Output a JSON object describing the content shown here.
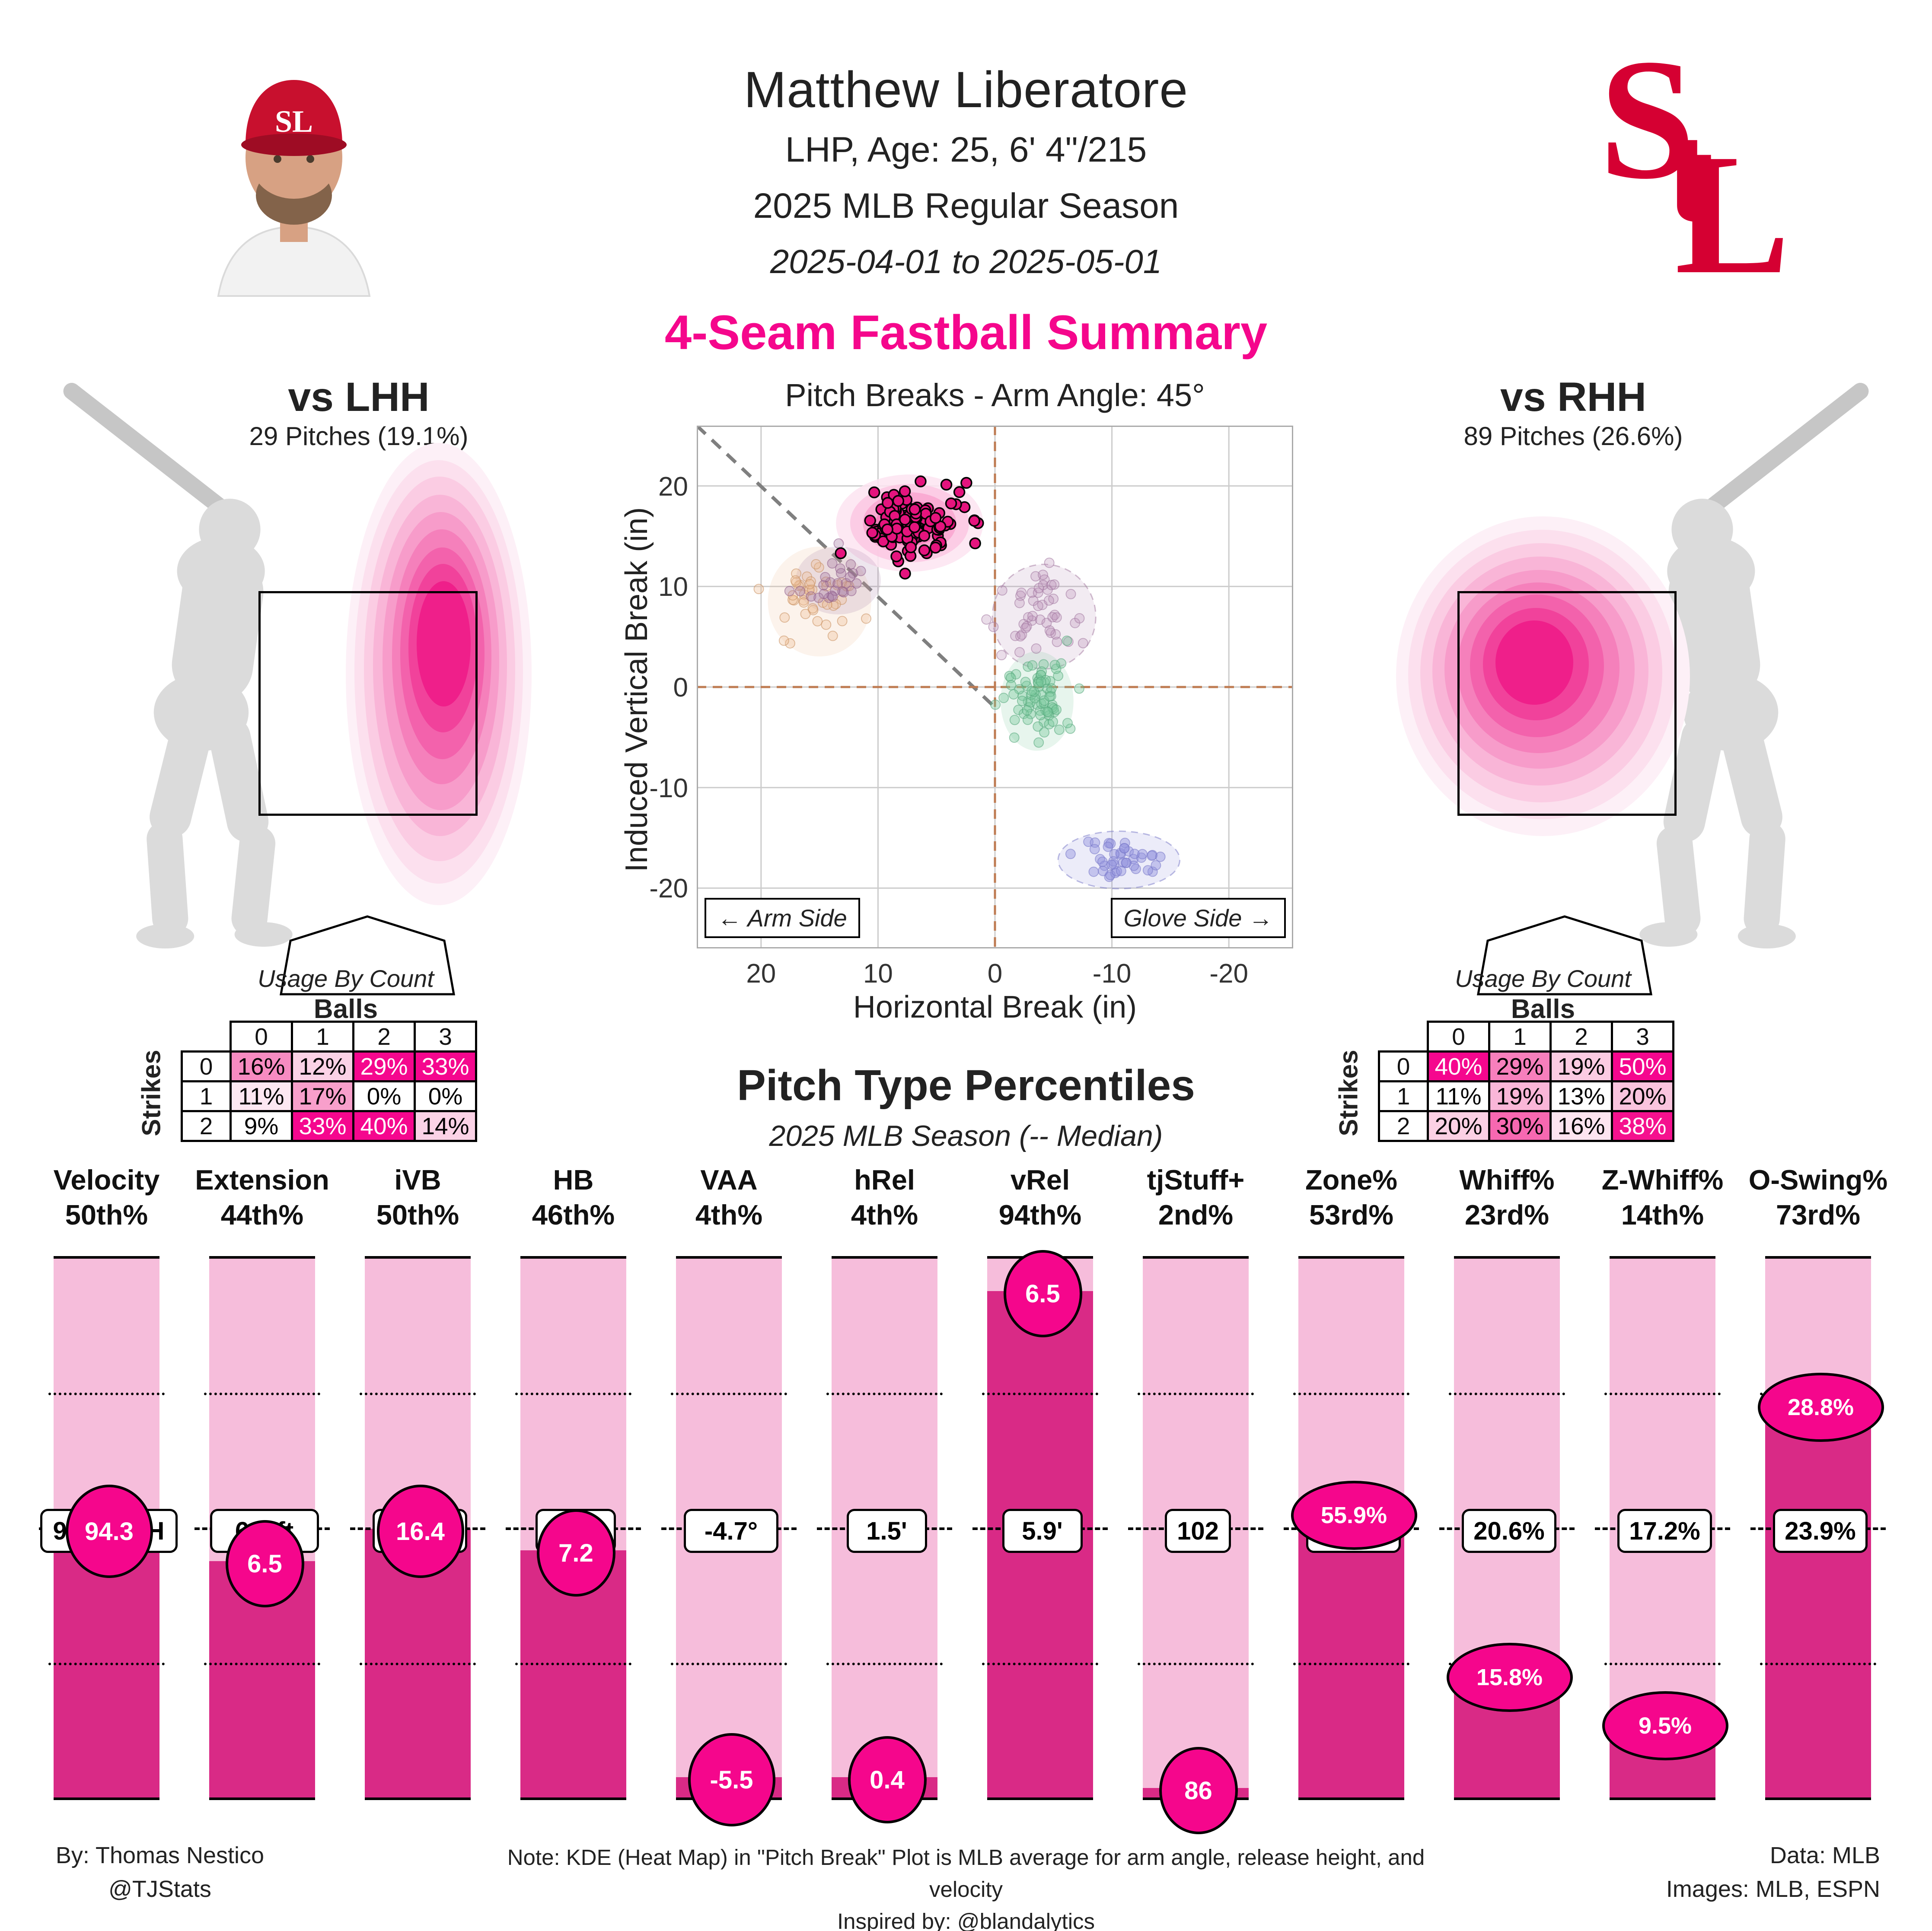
{
  "colors": {
    "accent": "#F5068C",
    "bar_dark": "#D92A86",
    "bar_light": "#F6BDDB",
    "circle_fill": "#F5068C",
    "logo_red": "#D50032",
    "silhouette": "#DBDBDB",
    "brown_dash": "#BE7B52",
    "gray_dash": "#7F7F7F",
    "grid": "#CCCCCC",
    "plot_border": "#AAAAAA"
  },
  "header": {
    "name": "Matthew Liberatore",
    "bio": "LHP, Age: 25, 6' 4\"/215",
    "season": "2025 MLB Regular Season",
    "date_range": "2025-04-01 to 2025-05-01",
    "team_monogram": "StL"
  },
  "section_title": "4-Seam Fastball Summary",
  "panels": {
    "lhh": {
      "title": "vs LHH",
      "subtitle": "29 Pitches (19.1%)",
      "heat_layers": [
        [
          417,
          192,
          430,
          1070,
          "#FDF0F7"
        ],
        [
          417,
          187,
          390,
          980,
          "#FCE0EE"
        ],
        [
          419,
          180,
          350,
          890,
          "#FBCCE3"
        ],
        [
          420,
          172,
          310,
          790,
          "#F9B5D7"
        ],
        [
          422,
          162,
          270,
          690,
          "#F79CCA"
        ],
        [
          424,
          152,
          230,
          590,
          "#F580BB"
        ],
        [
          425,
          144,
          195,
          490,
          "#F362AC"
        ],
        [
          427,
          132,
          160,
          390,
          "#F1429B"
        ],
        [
          428,
          122,
          125,
          290,
          "#EF1F8A"
        ]
      ]
    },
    "rhh": {
      "title": "vs RHH",
      "subtitle": "89 Pitches (26.6%)",
      "heat_layers": [
        [
          198,
          197,
          680,
          740,
          "#FDF0F7"
        ],
        [
          196,
          193,
          620,
          670,
          "#FCE0EE"
        ],
        [
          194,
          189,
          560,
          600,
          "#FBCCE3"
        ],
        [
          192,
          185,
          500,
          530,
          "#F9B5D7"
        ],
        [
          190,
          181,
          440,
          460,
          "#F79CCA"
        ],
        [
          187,
          177,
          375,
          395,
          "#F580BB"
        ],
        [
          184,
          173,
          310,
          330,
          "#F362AC"
        ],
        [
          181,
          169,
          245,
          260,
          "#F1429B"
        ],
        [
          178,
          165,
          180,
          195,
          "#EF1F8A"
        ]
      ]
    }
  },
  "usage": {
    "title": "Usage By Count",
    "balls_label": "Balls",
    "strikes_label": "Strikes",
    "ball_cols": [
      "0",
      "1",
      "2",
      "3"
    ],
    "strike_rows": [
      "0",
      "1",
      "2"
    ]
  },
  "chart_data": [
    {
      "id": "pitch_breaks",
      "type": "scatter",
      "title": "Pitch Breaks - Arm Angle: 45°",
      "xlabel": "Horizontal Break (in)",
      "ylabel": "Induced Vertical Break (in)",
      "xlim": [
        25.5,
        -25.5
      ],
      "ylim": [
        -26,
        26
      ],
      "x_reversed": true,
      "xticks": [
        20,
        10,
        0,
        -10,
        -20
      ],
      "yticks": [
        20,
        10,
        0,
        -10,
        -20
      ],
      "grid": true,
      "zero_lines": "dashed-brown",
      "diagonal_arm_angle_deg": 45,
      "annotations": {
        "arm_side": "← Arm Side",
        "glove_side": "Glove Side →"
      },
      "clusters": [
        {
          "name": "4-seam-fastball-highlighted",
          "cx": 7.3,
          "cy": 16.3,
          "sdx": 2.2,
          "sdy": 1.5,
          "n": 115,
          "color": "#E5147E",
          "edge": "#000000",
          "opacity": 1,
          "edge_w": 3.5,
          "r": 12,
          "kde": [
            "#FDE4F1",
            "#FBC7E2",
            "#F9A5D0",
            "#F67FBC",
            "#F35CA9"
          ]
        },
        {
          "name": "cluster-tan",
          "cx": 15.0,
          "cy": 8.5,
          "sdx": 1.7,
          "sdy": 2.1,
          "n": 42,
          "color": "#EDBE96",
          "edge": "#C89060",
          "opacity": 0.35,
          "edge_w": 2,
          "r": 11
        },
        {
          "name": "cluster-mauve-left",
          "cx": 13.4,
          "cy": 10.6,
          "sdx": 1.4,
          "sdy": 1.3,
          "n": 26,
          "color": "#A275A0",
          "edge": "#8F5E8C",
          "opacity": 0.35,
          "edge_w": 2,
          "r": 11
        },
        {
          "name": "cluster-mauve-right",
          "cx": -4.2,
          "cy": 7.0,
          "sdx": 1.7,
          "sdy": 2.0,
          "n": 48,
          "color": "#B98FB5",
          "edge": "#A379A0",
          "opacity": 0.3,
          "edge_w": 2,
          "r": 11,
          "dash": true
        },
        {
          "name": "cluster-green",
          "cx": -3.6,
          "cy": -1.4,
          "sdx": 1.2,
          "sdy": 1.9,
          "n": 78,
          "color": "#79C79C",
          "edge": "#55A87C",
          "opacity": 0.4,
          "edge_w": 2,
          "r": 11
        },
        {
          "name": "cluster-periwinkle",
          "cx": -10.6,
          "cy": -17.2,
          "sdx": 2.0,
          "sdy": 1.1,
          "n": 42,
          "color": "#9393DE",
          "edge": "#7878C8",
          "opacity": 0.45,
          "edge_w": 2,
          "r": 11,
          "dash": true
        }
      ]
    },
    {
      "id": "usage_vs_lhh",
      "type": "heatmap",
      "cells": [
        [
          {
            "t": "16%",
            "bg": "#F78BC1",
            "fg": "#000000"
          },
          {
            "t": "12%",
            "bg": "#FBD2E6",
            "fg": "#000000"
          },
          {
            "t": "29%",
            "bg": "#F5078E",
            "fg": "#FFFFFF"
          },
          {
            "t": "33%",
            "bg": "#F5078E",
            "fg": "#FFFFFF"
          }
        ],
        [
          {
            "t": "11%",
            "bg": "#FDE7F2",
            "fg": "#000000"
          },
          {
            "t": "17%",
            "bg": "#F89FCB",
            "fg": "#000000"
          },
          {
            "t": "0%",
            "bg": "#FFFFFF",
            "fg": "#000000"
          },
          {
            "t": "0%",
            "bg": "#FFFFFF",
            "fg": "#000000"
          }
        ],
        [
          {
            "t": "9%",
            "bg": "#FFFFFF",
            "fg": "#000000"
          },
          {
            "t": "33%",
            "bg": "#F5078E",
            "fg": "#FFFFFF"
          },
          {
            "t": "40%",
            "bg": "#F5078E",
            "fg": "#FFFFFF"
          },
          {
            "t": "14%",
            "bg": "#FBD2E6",
            "fg": "#000000"
          }
        ]
      ]
    },
    {
      "id": "usage_vs_rhh",
      "type": "heatmap",
      "cells": [
        [
          {
            "t": "40%",
            "bg": "#F5078E",
            "fg": "#FFFFFF"
          },
          {
            "t": "29%",
            "bg": "#F77FBC",
            "fg": "#000000"
          },
          {
            "t": "19%",
            "bg": "#FBCBE2",
            "fg": "#000000"
          },
          {
            "t": "50%",
            "bg": "#F5078E",
            "fg": "#FFFFFF"
          }
        ],
        [
          {
            "t": "11%",
            "bg": "#FFFFFF",
            "fg": "#000000"
          },
          {
            "t": "19%",
            "bg": "#FAB6D8",
            "fg": "#000000"
          },
          {
            "t": "13%",
            "bg": "#FFFFFF",
            "fg": "#000000"
          },
          {
            "t": "20%",
            "bg": "#FAC4DE",
            "fg": "#000000"
          }
        ],
        [
          {
            "t": "20%",
            "bg": "#FBD0E4",
            "fg": "#000000"
          },
          {
            "t": "30%",
            "bg": "#F768B1",
            "fg": "#000000"
          },
          {
            "t": "16%",
            "bg": "#FDE4F0",
            "fg": "#000000"
          },
          {
            "t": "38%",
            "bg": "#F5118E",
            "fg": "#FFFFFF"
          }
        ]
      ]
    },
    {
      "id": "pitch_percentiles",
      "type": "bar",
      "title": "Pitch Type Percentiles",
      "subtitle": "2025 MLB Season (-- Median)",
      "ylim": [
        0,
        100
      ],
      "median_line": 50,
      "quartile_lines": [
        25,
        75
      ],
      "columns": [
        {
          "name": "Velocity",
          "pct_label": "50th%",
          "percentile": 50,
          "value": "94.3",
          "median_label": "94.3 MPH"
        },
        {
          "name": "Extension",
          "pct_label": "44th%",
          "percentile": 44,
          "value": "6.5",
          "median_label": "6.5 ft"
        },
        {
          "name": "iVB",
          "pct_label": "50th%",
          "percentile": 50,
          "value": "16.4",
          "median_label": "16.4\""
        },
        {
          "name": "HB",
          "pct_label": "46th%",
          "percentile": 46,
          "value": "7.2",
          "median_label": "7.4\""
        },
        {
          "name": "VAA",
          "pct_label": "4th%",
          "percentile": 4,
          "value": "-5.5",
          "median_label": "-4.7°"
        },
        {
          "name": "hRel",
          "pct_label": "4th%",
          "percentile": 4,
          "value": "0.4",
          "median_label": "1.5'"
        },
        {
          "name": "vRel",
          "pct_label": "94th%",
          "percentile": 94,
          "value": "6.5",
          "median_label": "5.9'"
        },
        {
          "name": "tjStuff+",
          "pct_label": "2nd%",
          "percentile": 2,
          "value": "86",
          "median_label": "102"
        },
        {
          "name": "Zone%",
          "pct_label": "53rd%",
          "percentile": 53,
          "value": "55.9%",
          "median_label": "55.5%"
        },
        {
          "name": "Whiff%",
          "pct_label": "23rd%",
          "percentile": 23,
          "value": "15.8%",
          "median_label": "20.6%"
        },
        {
          "name": "Z-Whiff%",
          "pct_label": "14th%",
          "percentile": 14,
          "value": "9.5%",
          "median_label": "17.2%"
        },
        {
          "name": "O-Swing%",
          "pct_label": "73rd%",
          "percentile": 73,
          "value": "28.8%",
          "median_label": "23.9%"
        }
      ]
    }
  ],
  "footer": {
    "by_line1": "By: Thomas Nestico",
    "by_line2": "@TJStats",
    "note_line1": "Note: KDE (Heat Map) in \"Pitch Break\" Plot is MLB average for arm angle, release height, and velocity",
    "note_line2": "Inspired by: @blandalytics",
    "right_line1": "Data: MLB",
    "right_line2": "Images: MLB, ESPN"
  }
}
